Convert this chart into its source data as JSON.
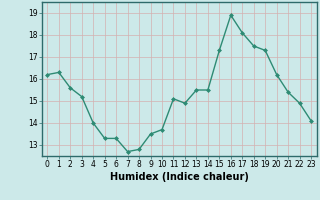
{
  "x": [
    0,
    1,
    2,
    3,
    4,
    5,
    6,
    7,
    8,
    9,
    10,
    11,
    12,
    13,
    14,
    15,
    16,
    17,
    18,
    19,
    20,
    21,
    22,
    23
  ],
  "y": [
    16.2,
    16.3,
    15.6,
    15.2,
    14.0,
    13.3,
    13.3,
    12.7,
    12.8,
    13.5,
    13.7,
    15.1,
    14.9,
    15.5,
    15.5,
    17.3,
    18.9,
    18.1,
    17.5,
    17.3,
    16.2,
    15.4,
    14.9,
    14.1
  ],
  "line_color": "#2e8b74",
  "marker": "D",
  "markersize": 2.0,
  "linewidth": 1.0,
  "xlabel": "Humidex (Indice chaleur)",
  "xlabel_fontsize": 7.0,
  "background_color": "#cce9e9",
  "grid_color": "#d4b0b0",
  "ylim": [
    12.5,
    19.5
  ],
  "xlim": [
    -0.5,
    23.5
  ],
  "yticks": [
    13,
    14,
    15,
    16,
    17,
    18,
    19
  ],
  "xticks": [
    0,
    1,
    2,
    3,
    4,
    5,
    6,
    7,
    8,
    9,
    10,
    11,
    12,
    13,
    14,
    15,
    16,
    17,
    18,
    19,
    20,
    21,
    22,
    23
  ],
  "tick_fontsize": 5.5,
  "spine_color": "#2e6b6b"
}
